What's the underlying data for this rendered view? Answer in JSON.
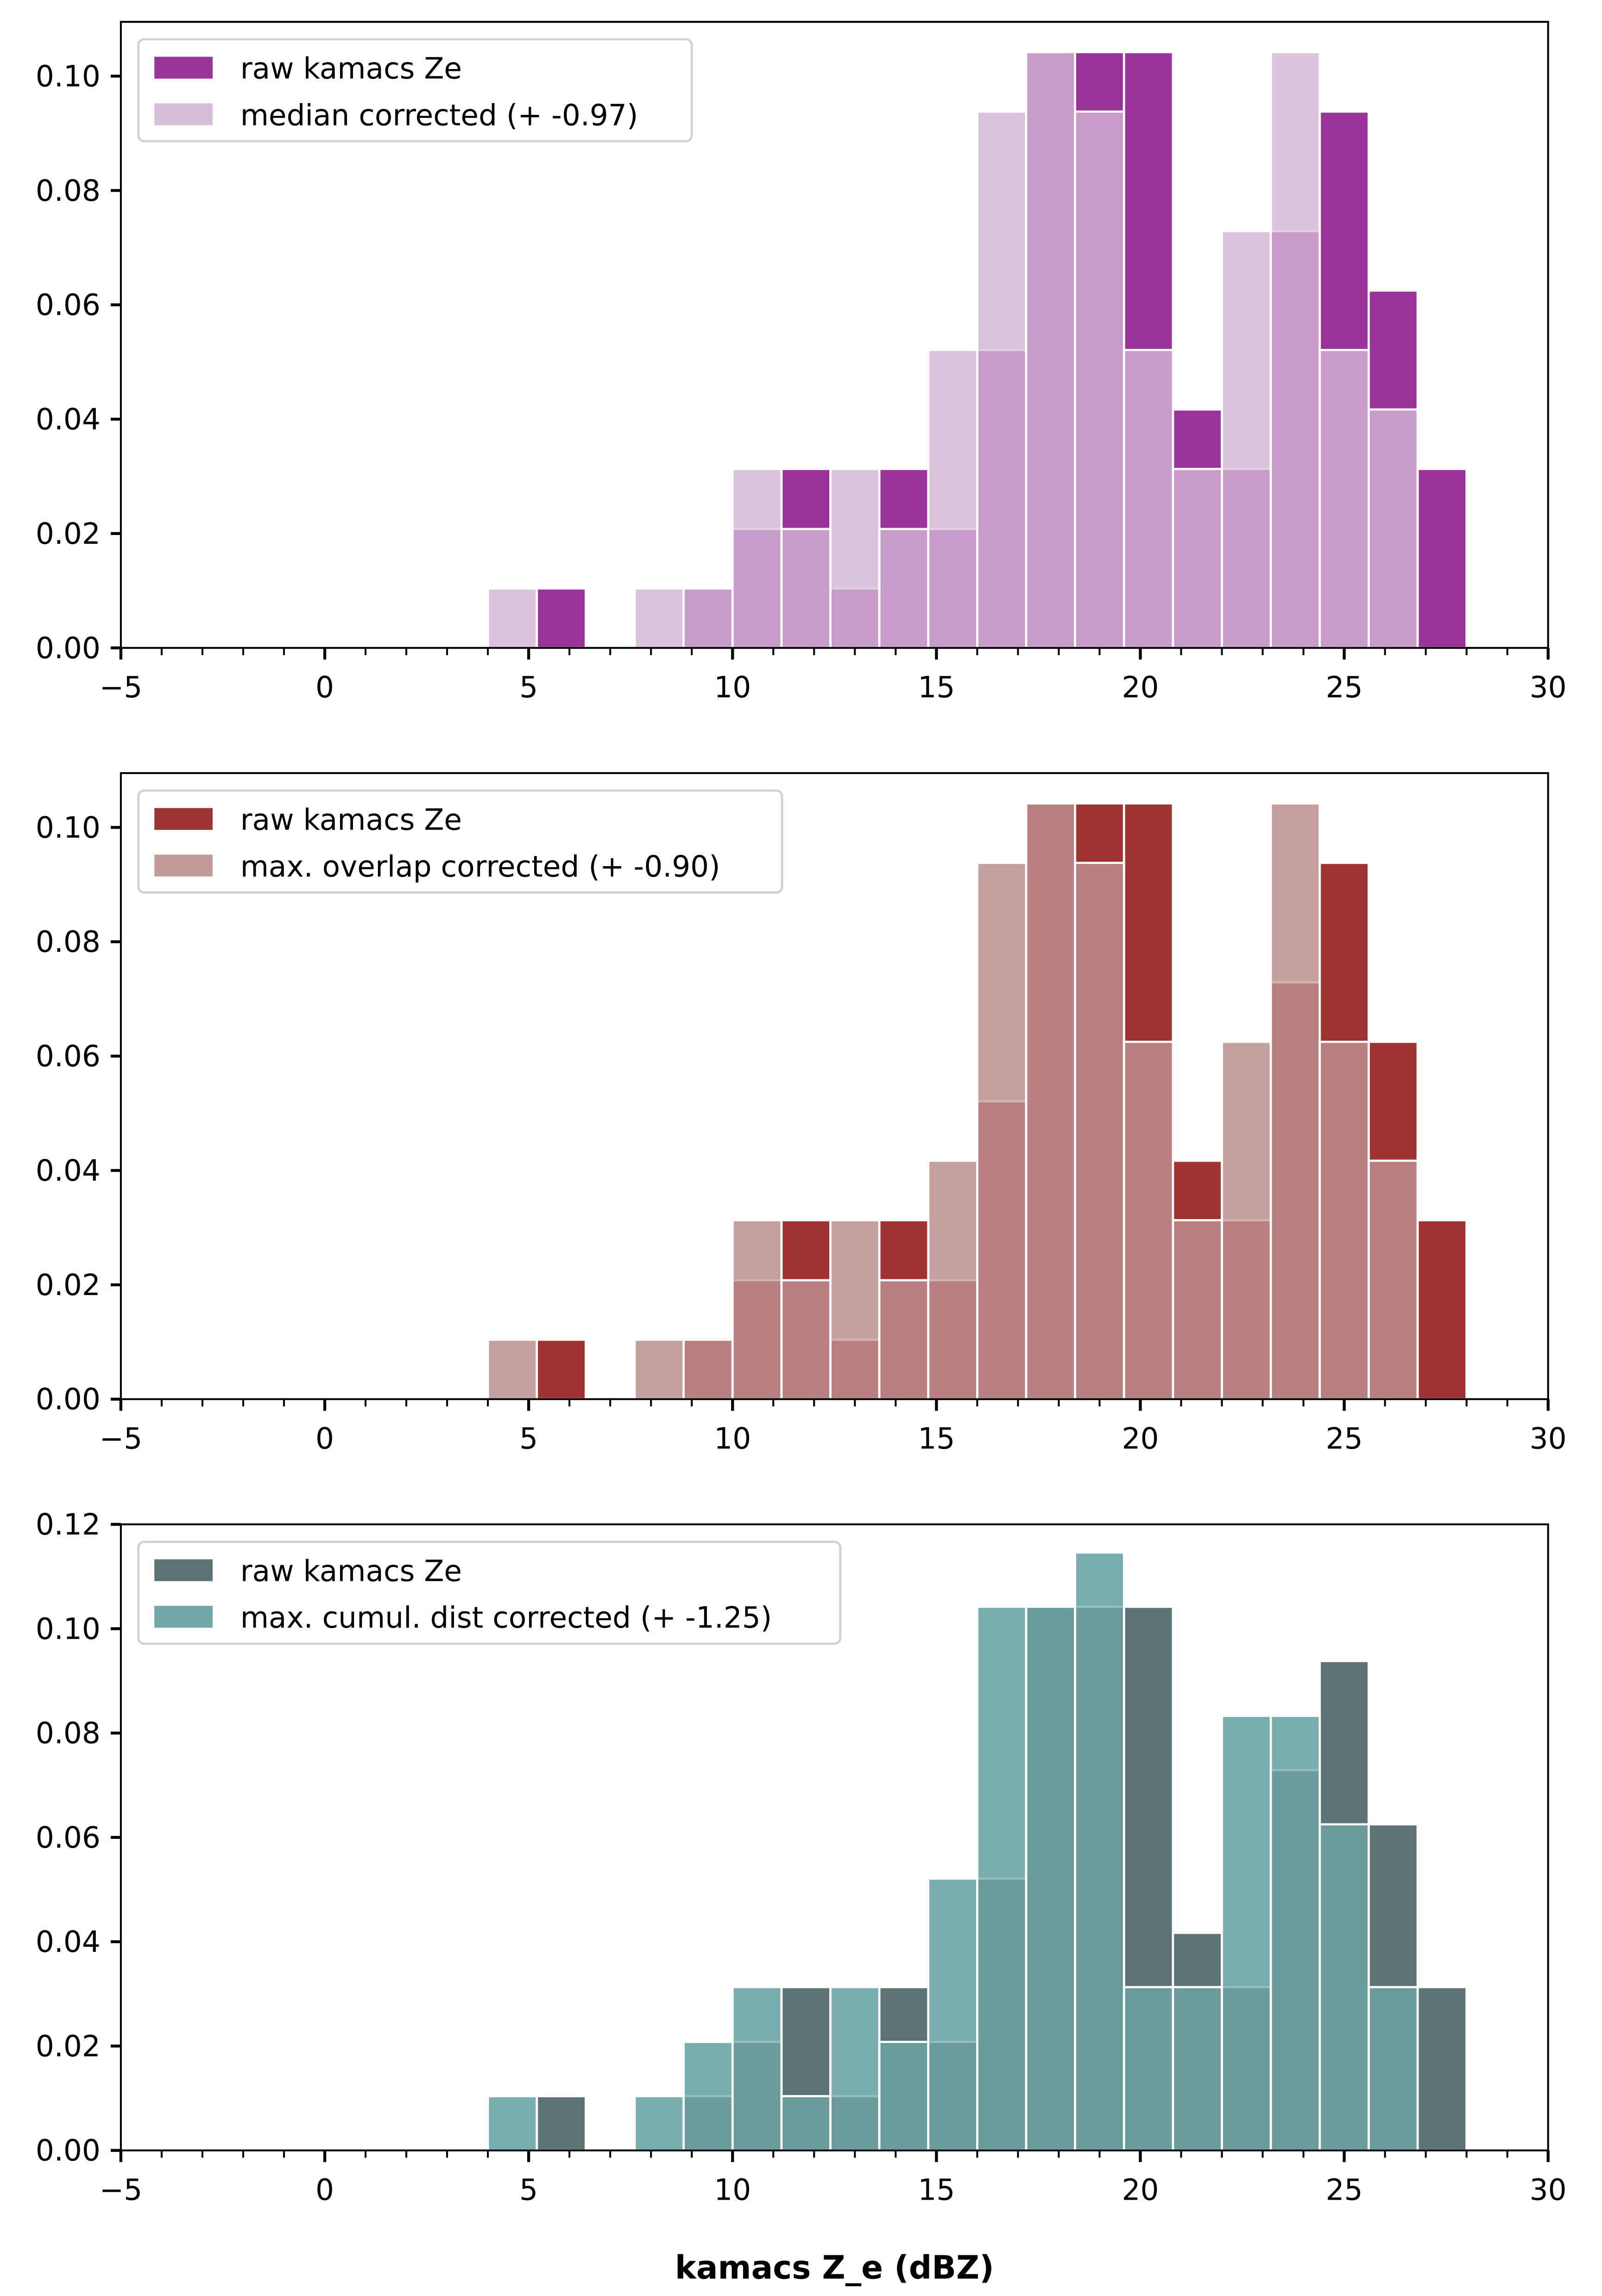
{
  "figure": {
    "xlabel": "kamacs Z_e (dBZ)"
  },
  "chart_data": [
    {
      "type": "bar",
      "subtype": "overlapping histogram (density)",
      "title": "",
      "xlabel": "",
      "ylabel": "",
      "xlim": [
        -5,
        30
      ],
      "ylim": [
        0,
        0.1095
      ],
      "xticks": [
        -5,
        0,
        5,
        10,
        15,
        20,
        25,
        30
      ],
      "xtick_labels": [
        "−5",
        "0",
        "5",
        "10",
        "15",
        "20",
        "25",
        "30"
      ],
      "yticks": [
        0.0,
        0.02,
        0.04,
        0.06,
        0.08,
        0.1
      ],
      "ytick_labels": [
        "0.00",
        "0.02",
        "0.04",
        "0.06",
        "0.08",
        "0.10"
      ],
      "legend_position": "top-left",
      "bin_edges": [
        4.0,
        5.2,
        6.4,
        7.6,
        8.8,
        10.0,
        11.2,
        12.4,
        13.6,
        14.8,
        16.0,
        17.2,
        18.4,
        19.6,
        20.8,
        22.0,
        23.2,
        24.4,
        25.6,
        26.8,
        28.0
      ],
      "series": [
        {
          "name": "raw kamacs Ze",
          "color": "#993399",
          "values": [
            0.0,
            0.0104,
            0.0,
            0.0,
            0.0104,
            0.0208,
            0.0313,
            0.0104,
            0.0313,
            0.0208,
            0.0521,
            0.1042,
            0.1042,
            0.1042,
            0.0417,
            0.0313,
            0.0729,
            0.0938,
            0.0625,
            0.0313
          ]
        },
        {
          "name": "median corrected (+ -0.97)",
          "color": "#d8bfd8",
          "values": [
            0.0104,
            0.0,
            0.0,
            0.0104,
            0.0104,
            0.0313,
            0.0208,
            0.0313,
            0.0208,
            0.0521,
            0.0938,
            0.1042,
            0.0938,
            0.0521,
            0.0313,
            0.0729,
            0.1042,
            0.0521,
            0.0417,
            0.0
          ]
        }
      ]
    },
    {
      "type": "bar",
      "subtype": "overlapping histogram (density)",
      "title": "",
      "xlabel": "",
      "ylabel": "",
      "xlim": [
        -5,
        30
      ],
      "ylim": [
        0,
        0.1095
      ],
      "xticks": [
        -5,
        0,
        5,
        10,
        15,
        20,
        25,
        30
      ],
      "xtick_labels": [
        "−5",
        "0",
        "5",
        "10",
        "15",
        "20",
        "25",
        "30"
      ],
      "yticks": [
        0.0,
        0.02,
        0.04,
        0.06,
        0.08,
        0.1
      ],
      "ytick_labels": [
        "0.00",
        "0.02",
        "0.04",
        "0.06",
        "0.08",
        "0.10"
      ],
      "legend_position": "top-left",
      "bin_edges": [
        4.0,
        5.2,
        6.4,
        7.6,
        8.8,
        10.0,
        11.2,
        12.4,
        13.6,
        14.8,
        16.0,
        17.2,
        18.4,
        19.6,
        20.8,
        22.0,
        23.2,
        24.4,
        25.6,
        26.8,
        28.0
      ],
      "series": [
        {
          "name": "raw kamacs Ze",
          "color": "#a03232",
          "values": [
            0.0,
            0.0104,
            0.0,
            0.0,
            0.0104,
            0.0208,
            0.0313,
            0.0104,
            0.0313,
            0.0208,
            0.0521,
            0.1042,
            0.1042,
            0.1042,
            0.0417,
            0.0313,
            0.0729,
            0.0938,
            0.0625,
            0.0313
          ]
        },
        {
          "name": "max. overlap corrected (+ -0.90)",
          "color": "#c29a9a",
          "values": [
            0.0104,
            0.0,
            0.0,
            0.0104,
            0.0104,
            0.0313,
            0.0208,
            0.0313,
            0.0208,
            0.0417,
            0.0938,
            0.1042,
            0.0938,
            0.0625,
            0.0313,
            0.0625,
            0.1042,
            0.0625,
            0.0417,
            0.0
          ]
        }
      ]
    },
    {
      "type": "bar",
      "subtype": "overlapping histogram (density)",
      "title": "",
      "xlabel": "kamacs Z_e (dBZ)",
      "ylabel": "",
      "xlim": [
        -5,
        30
      ],
      "ylim": [
        0,
        0.12
      ],
      "xticks": [
        -5,
        0,
        5,
        10,
        15,
        20,
        25,
        30
      ],
      "xtick_labels": [
        "−5",
        "0",
        "5",
        "10",
        "15",
        "20",
        "25",
        "30"
      ],
      "yticks": [
        0.0,
        0.02,
        0.04,
        0.06,
        0.08,
        0.1,
        0.12
      ],
      "ytick_labels": [
        "0.00",
        "0.02",
        "0.04",
        "0.06",
        "0.08",
        "0.10",
        "0.12"
      ],
      "legend_position": "top-left",
      "bin_edges": [
        4.0,
        5.2,
        6.4,
        7.6,
        8.8,
        10.0,
        11.2,
        12.4,
        13.6,
        14.8,
        16.0,
        17.2,
        18.4,
        19.6,
        20.8,
        22.0,
        23.2,
        24.4,
        25.6,
        26.8,
        28.0
      ],
      "series": [
        {
          "name": "raw kamacs Ze",
          "color": "#5b7473",
          "values": [
            0.0,
            0.0104,
            0.0,
            0.0,
            0.0104,
            0.0208,
            0.0313,
            0.0104,
            0.0313,
            0.0208,
            0.0521,
            0.1042,
            0.1042,
            0.1042,
            0.0417,
            0.0313,
            0.0729,
            0.0938,
            0.0625,
            0.0313
          ]
        },
        {
          "name": "max. cumul. dist corrected (+ -1.25)",
          "color": "#70a7a8",
          "values": [
            0.0104,
            0.0,
            0.0,
            0.0104,
            0.0208,
            0.0313,
            0.0104,
            0.0313,
            0.0208,
            0.0521,
            0.1042,
            0.1042,
            0.1146,
            0.0313,
            0.0313,
            0.0833,
            0.0833,
            0.0625,
            0.0313,
            0.0
          ]
        }
      ]
    }
  ]
}
